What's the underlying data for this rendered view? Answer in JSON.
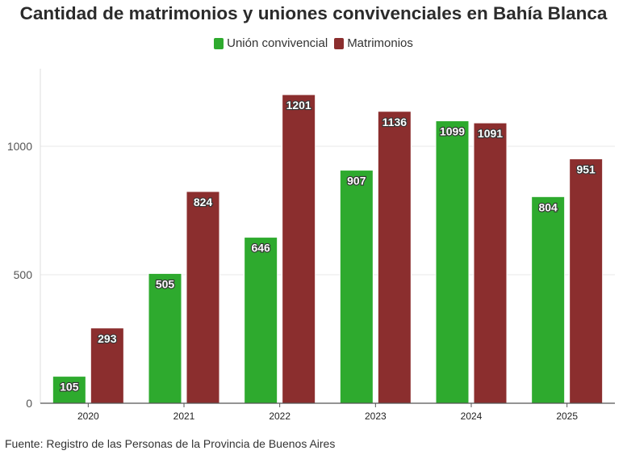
{
  "title": "Cantidad de matrimonios y uniones convivenciales en Bahía Blanca",
  "source": "Fuente: Registro de las Personas de la Provincia de Buenos Aires",
  "colors": {
    "union": "#2eaa2e",
    "matrimonios": "#8b2e2e"
  },
  "chart_data": {
    "type": "bar",
    "categories": [
      "2020",
      "2021",
      "2022",
      "2023",
      "2024",
      "2025"
    ],
    "series": [
      {
        "name": "Unión convivencial",
        "values": [
          105,
          505,
          646,
          907,
          1099,
          804
        ]
      },
      {
        "name": "Matrimonios",
        "values": [
          293,
          824,
          1201,
          1136,
          1091,
          951
        ]
      }
    ],
    "ylim": [
      0,
      1250
    ],
    "yticks": [
      0,
      500,
      1000
    ],
    "grid": true,
    "legend": "top-center",
    "xlabel": "",
    "ylabel": ""
  }
}
